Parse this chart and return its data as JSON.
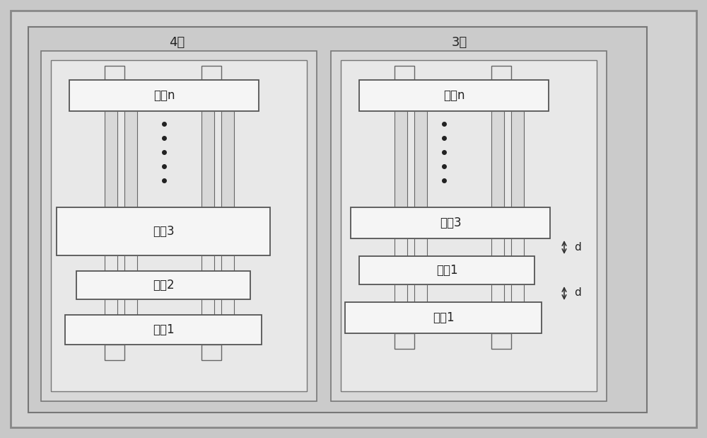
{
  "fig_bg": "#c8c8c8",
  "outer_border_fc": "#d0d0d0",
  "outer_border_ec": "#888888",
  "panel_fc": "#d8d8d8",
  "panel_ec": "#888888",
  "inner_panel_fc": "#e0e0e0",
  "inner_panel_ec": "#888888",
  "slab_box_fc": "#f5f5f5",
  "slab_box_ec": "#555555",
  "stub_fc": "#e8e8e8",
  "stub_ec": "#666666",
  "rail_fc": "#d8d8d8",
  "rail_ec": "#666666",
  "text_color": "#222222",
  "label_4col": "4列",
  "label_3col": "3列",
  "label_d": "d",
  "font_size_col": 13,
  "font_size_slab": 12,
  "font_size_d": 11,
  "slab_labels_left": [
    "板坯n",
    "板坯3",
    "板坯2",
    "板坯1"
  ],
  "slab_labels_right": [
    "板坯n",
    "板坯3",
    "板坯1",
    "板坯1"
  ]
}
